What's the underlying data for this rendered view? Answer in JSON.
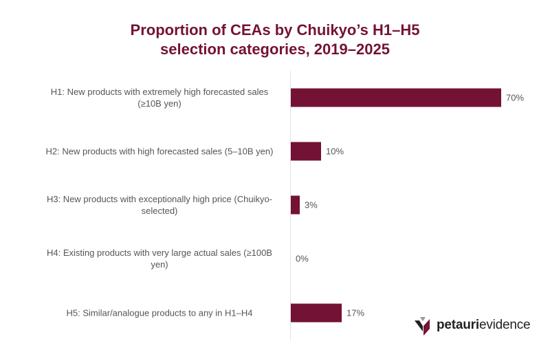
{
  "title_line1": "Proportion of CEAs by Chuikyo’s H1–H5",
  "title_line2": "selection categories, 2019–2025",
  "colors": {
    "bar": "#741235",
    "title": "#741235",
    "label": "#555555",
    "axis": "#e2e2e2"
  },
  "rows": [
    {
      "label": "H1: New products with extremely high forecasted sales (≥10B yen)",
      "value": 70,
      "value_label": "70%"
    },
    {
      "label": "H2: New products with high forecasted sales (5–10B yen)",
      "value": 10,
      "value_label": "10%"
    },
    {
      "label": "H3: New products with exceptionally high price (Chuikyo-selected)",
      "value": 3,
      "value_label": "3%"
    },
    {
      "label": "H4: Existing products with very large actual sales (≥100B yen)",
      "value": 0,
      "value_label": "0%"
    },
    {
      "label": "H5: Similar/analogue products to any in H1–H4",
      "value": 17,
      "value_label": "17%"
    }
  ],
  "logo": {
    "bold": "petauri",
    "regular": "evidence"
  },
  "chart_data": {
    "type": "bar",
    "orientation": "horizontal",
    "title": "Proportion of CEAs by Chuikyo’s H1–H5 selection categories, 2019–2025",
    "categories": [
      "H1: New products with extremely high forecasted sales (≥10B yen)",
      "H2: New products with high forecasted sales (5–10B yen)",
      "H3: New products with exceptionally high price (Chuikyo-selected)",
      "H4: Existing products with very large actual sales (≥100B yen)",
      "H5: Similar/analogue products to any in H1–H4"
    ],
    "values": [
      70,
      10,
      3,
      0,
      17
    ],
    "value_labels": [
      "70%",
      "10%",
      "3%",
      "0%",
      "17%"
    ],
    "xlabel": "",
    "ylabel": "",
    "unit": "%",
    "grid": false,
    "legend": null
  }
}
